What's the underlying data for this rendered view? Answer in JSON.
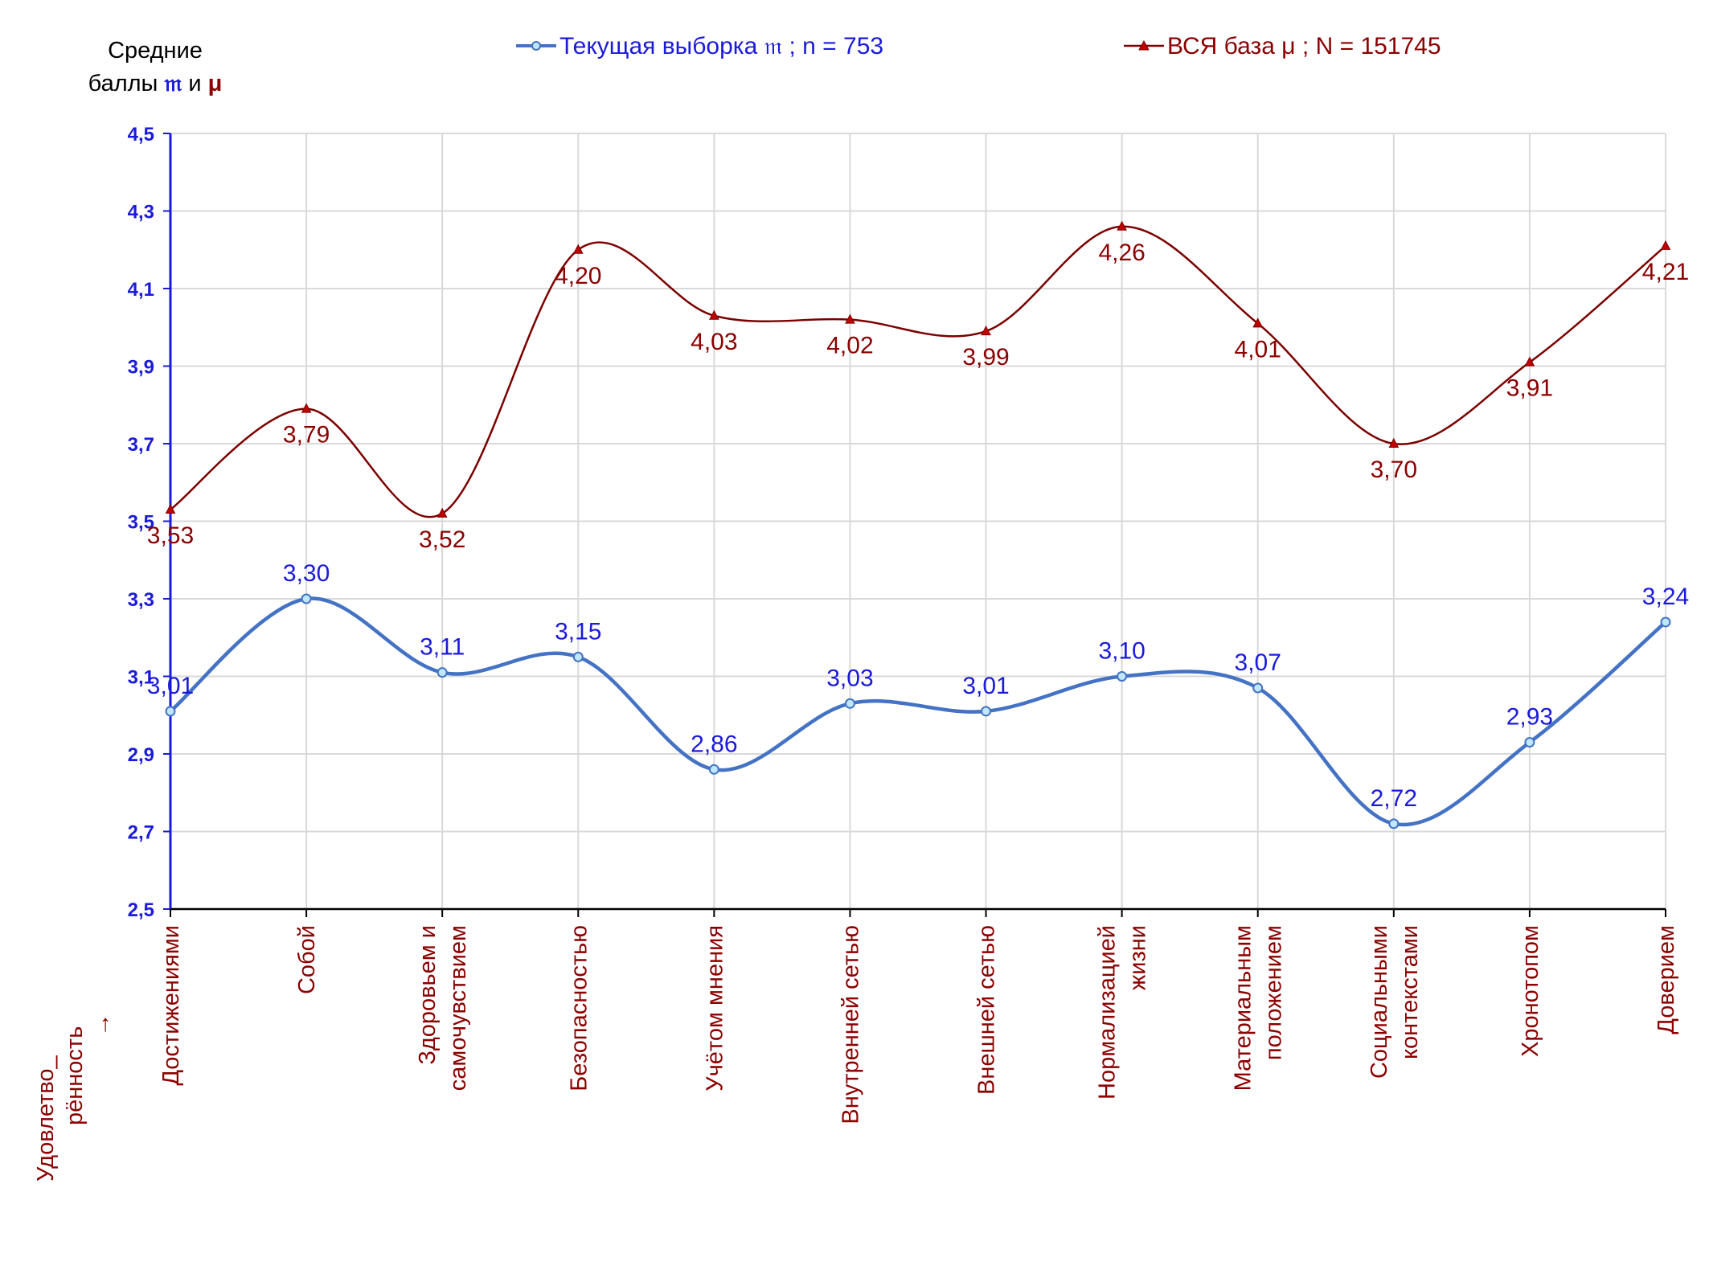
{
  "colors": {
    "sample": "#4472c4",
    "sample_label": "#1a1adc",
    "all": "#7b0000",
    "all_label": "#8b0000",
    "grid": "#d9d9d9",
    "axis": "#1a1adc"
  },
  "chart_data": {
    "type": "line",
    "ylabel_line1": "Средние",
    "ylabel_line2_prefix": "баллы ",
    "ylabel_sym_sample": "𝔪",
    "ylabel_and": " и ",
    "ylabel_sym_all": "μ",
    "xcaption_line1": "Удовлетво_",
    "xcaption_line2": "рённость",
    "xcaption_arrow": "→",
    "ylim": [
      2.5,
      4.5
    ],
    "yticks": [
      "2,5",
      "2,7",
      "2,9",
      "3,1",
      "3,3",
      "3,5",
      "3,7",
      "3,9",
      "4,1",
      "4,3",
      "4,5"
    ],
    "ytick_values": [
      2.5,
      2.7,
      2.9,
      3.1,
      3.3,
      3.5,
      3.7,
      3.9,
      4.1,
      4.3,
      4.5
    ],
    "grid": true,
    "legend_position": "top",
    "categories": [
      [
        "Достижениями"
      ],
      [
        "Собой"
      ],
      [
        "Здоровьем и",
        "самочувствием"
      ],
      [
        "Безопасностью"
      ],
      [
        "Учётом мнения"
      ],
      [
        "Внутренней сетью"
      ],
      [
        "Внешней сетью"
      ],
      [
        "Нормализацией",
        "жизни"
      ],
      [
        "Материальным",
        "положением"
      ],
      [
        "Социальными",
        "контекстами"
      ],
      [
        "Хронотопом"
      ],
      [
        "Доверием"
      ]
    ],
    "series": [
      {
        "name": "Текущая выборка 𝔪 ; n = 753",
        "marker": "circle",
        "values": [
          3.01,
          3.3,
          3.11,
          3.15,
          2.86,
          3.03,
          3.01,
          3.1,
          3.07,
          2.72,
          2.93,
          3.24
        ],
        "labels": [
          "3,01",
          "3,30",
          "3,11",
          "3,15",
          "2,86",
          "3,03",
          "3,01",
          "3,10",
          "3,07",
          "2,72",
          "2,93",
          "3,24"
        ]
      },
      {
        "name": "ВСЯ база μ ; N = 151745",
        "marker": "triangle",
        "values": [
          3.53,
          3.79,
          3.52,
          4.2,
          4.03,
          4.02,
          3.99,
          4.26,
          4.01,
          3.7,
          3.91,
          4.21
        ],
        "labels": [
          "3,53",
          "3,79",
          "3,52",
          "4,20",
          "4,03",
          "4,02",
          "3,99",
          "4,26",
          "4,01",
          "3,70",
          "3,91",
          "4,21"
        ]
      }
    ]
  }
}
